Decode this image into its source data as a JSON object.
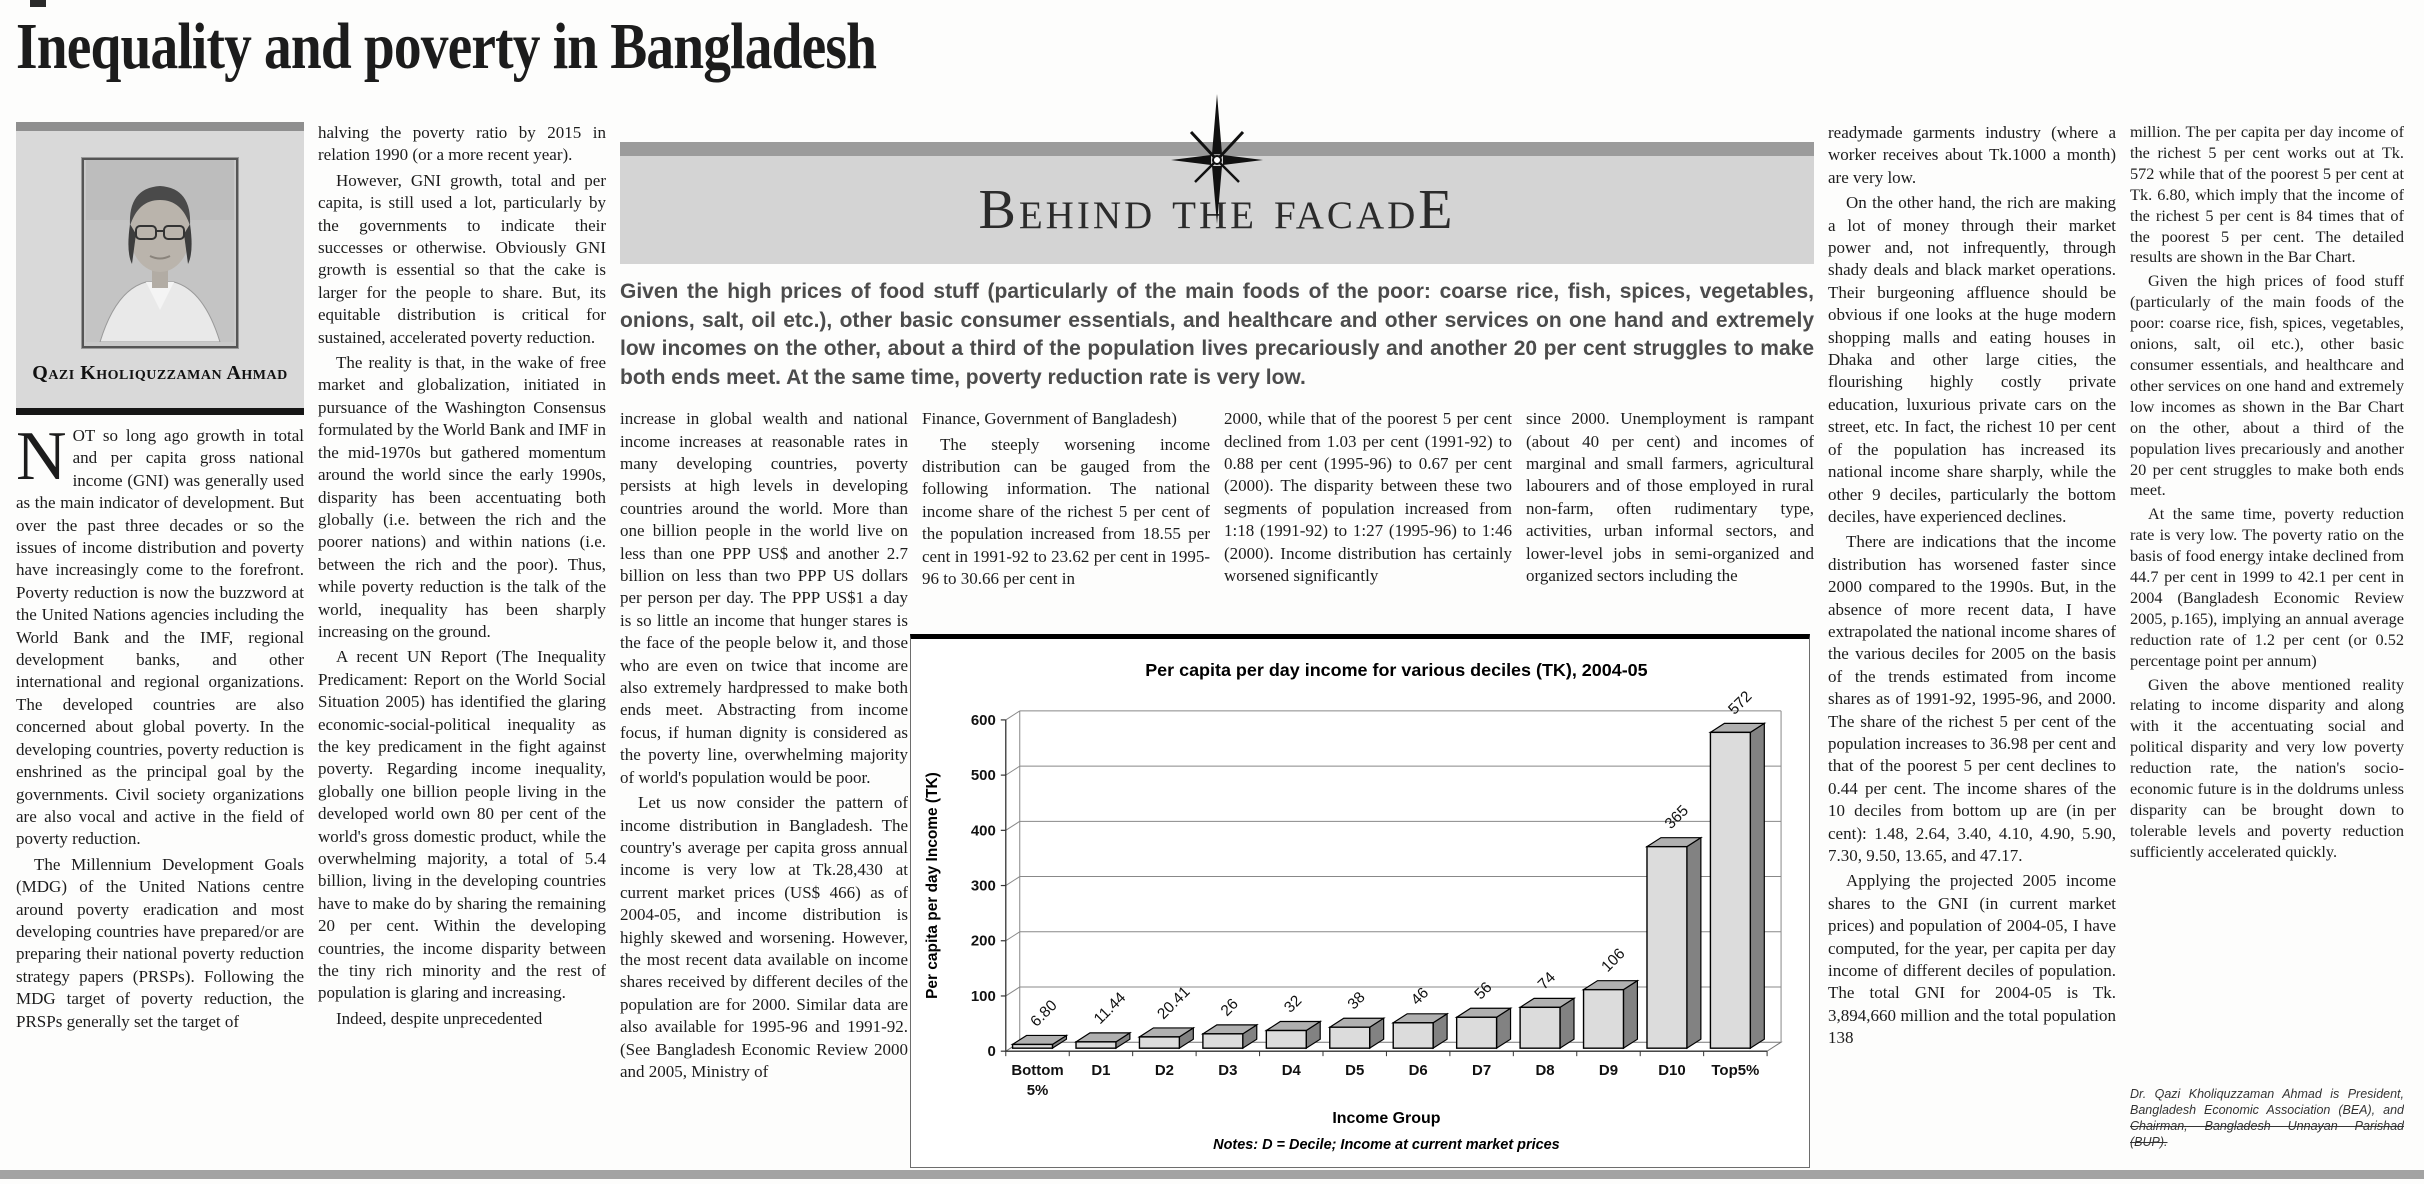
{
  "page": {
    "headline": "Inequality and poverty in Bangladesh"
  },
  "author": {
    "name": "Qazi Kholiquzzaman Ahmad",
    "portrait_icon": "portrait-photo"
  },
  "banner": {
    "icon": "starburst-icon",
    "title": "Behind the facadE",
    "intro": "Given the high prices of food stuff (particularly of the main foods of the poor: coarse rice, fish, spices, vegetables, onions, salt, oil etc.), other basic consumer essentials, and healthcare and other services on one hand and extremely low incomes on the other, about a third of the population lives precariously and another 20 per cent struggles to make both ends meet. At the same time, poverty reduction rate is very low."
  },
  "columns": {
    "col1": {
      "dropcap": "N",
      "paragraphs": [
        "OT so long ago growth in total and per capita gross national income (GNI) was generally used as the main indicator of development. But over the past three decades or so the issues of income distribution and poverty have increasingly come to the forefront. Poverty reduction is now the buzzword at the United Nations agencies including the World Bank and the IMF, regional development banks, and other international and regional organizations. The developed countries are also concerned about global poverty. In the developing countries, poverty reduction is enshrined as the principal goal by the governments. Civil society organizations are also vocal and active in the field of poverty reduction.",
        "The Millennium Development Goals (MDG) of the United Nations centre around poverty eradication and most developing countries have prepared/or are preparing their national poverty reduction strategy papers (PRSPs). Following the MDG target of poverty reduction, the PRSPs generally set the target of"
      ]
    },
    "col2": {
      "paragraphs": [
        "halving the poverty ratio by 2015 in relation 1990 (or a more recent year).",
        "However, GNI growth, total and per capita, is still used a lot, particularly by the governments to indicate their successes or otherwise. Obviously GNI growth is essential so that the cake is larger for the people to share. But, its equitable distribution is critical for sustained, accelerated poverty reduction.",
        "The reality is that, in the wake of free market and globalization, initiated in pursuance of the Washington Consensus formulated by the World Bank and IMF in the mid-1970s but gathered momentum around the world since the early 1990s, disparity has been accentuating both globally (i.e. between the rich and the poorer nations) and within nations (i.e. between the rich and the poor). Thus, while poverty reduction is the talk of the world, inequality has been sharply increasing on the ground.",
        "A recent UN Report (The Inequality Predicament: Report on the World Social Situation 2005) has identified the glaring economic-social-political inequality as the key predicament in the fight against poverty. Regarding income inequality, globally one billion people living in the developed world own 80 per cent of the world's gross domestic product, while the overwhelming majority, a total of 5.4 billion, living in the developing countries have to make do by sharing the remaining 20 per cent. Within the developing countries, the income disparity between the tiny rich minority and the rest of population is glaring and increasing.",
        "Indeed, despite unprecedented"
      ]
    },
    "col3": {
      "paragraphs": [
        "increase in global wealth and national income increases at reasonable rates in many developing countries, poverty persists at high levels in developing countries around the world.  More than one billion people in the world live on less than one PPP US$ and another 2.7 billion on less than two PPP US dollars per person per day. The PPP US$1 a day is so little an income that hunger stares is the face of the people below it, and those who are even on twice that income are also extremely hardpressed to make both ends meet. Abstracting from income focus, if human dignity is considered as the poverty line, overwhelming majority of world's population would be poor.",
        "Let us now consider the pattern of income distribution in Bangladesh. The country's average per capita gross annual income is very low at Tk.28,430 at current market prices (US$ 466) as of 2004-05, and income distribution is highly skewed and worsening. However, the most recent data available on income shares received by different deciles of the population are for 2000.  Similar data are also available for 1995-96 and 1991-92. (See Bangladesh Economic Review 2000 and 2005, Ministry of"
      ]
    },
    "col4": {
      "paragraphs": [
        "Finance, Government of Bangladesh)",
        "The steeply worsening income distribution can be gauged from the following information. The national income share of the richest 5 per cent of the population increased from 18.55 per cent in 1991-92 to 23.62 per cent in 1995-96 to 30.66 per cent in"
      ]
    },
    "col5": {
      "paragraphs": [
        "2000, while that of the poorest 5 per cent declined from 1.03 per cent (1991-92) to 0.88 per cent (1995-96) to 0.67 per cent (2000). The disparity between these two segments of population increased from 1:18 (1991-92) to 1:27 (1995-96) to 1:46 (2000). Income distribution has certainly worsened significantly"
      ]
    },
    "col6": {
      "paragraphs": [
        "since 2000. Unemployment is rampant (about 40 per cent) and incomes of marginal and small farmers, agricultural labourers and of those employed in rural non-farm, often rudimentary type, activities, urban informal sectors, and lower-level jobs in semi-organized and organized sectors including the"
      ]
    },
    "col7": {
      "paragraphs": [
        "readymade garments industry (where a worker receives about Tk.1000 a month) are very low.",
        "On the other hand, the rich are making a lot of money through their market power and, not infrequently, through shady deals and black market operations. Their burgeoning affluence should be obvious if one looks at the huge modern shopping malls and eating houses in Dhaka and other large cities, the flourishing highly costly private education, luxurious private cars on the street, etc.  In fact, the richest 10 per cent of the population has increased its national income share sharply, while the other 9 deciles, particularly the bottom deciles, have experienced declines.",
        "There are indications that the income distribution has worsened faster since 2000 compared to the 1990s.  But, in the absence of more recent data, I have extrapolated the national income shares of the various deciles for 2005 on the basis of the trends estimated from income shares as of 1991-92, 1995-96, and 2000. The share of the richest 5 per cent of the population increases to 36.98 per cent and that of the poorest 5 per cent declines to 0.44 per cent. The income shares of the 10 deciles from bottom up are (in per cent): 1.48, 2.64, 3.40, 4.10, 4.90, 5.90, 7.30, 9.50, 13.65, and 47.17.",
        "Applying the projected 2005 income shares to the GNI (in current market prices) and population of 2004-05, I have computed, for the year, per capita per day income of different deciles of population. The total GNI for 2004-05 is Tk. 3,894,660 million and the total population 138"
      ]
    },
    "col8": {
      "paragraphs": [
        "million.  The per capita per day income of the richest 5 per cent works out at Tk. 572 while that of the poorest 5 per cent at Tk. 6.80, which imply that the income of the richest 5 per cent is 84 times that of the poorest 5 per cent.  The detailed results are shown in the Bar Chart.",
        "Given the high prices of food stuff (particularly of the main foods of the poor: coarse rice, fish, spices, vegetables, onions, salt, oil etc.), other basic consumer essentials, and healthcare and other services on one hand and extremely low incomes as shown in the Bar Chart on the other, about a third of the population lives precariously and another 20 per cent struggles to make both ends meet.",
        "At the same time, poverty reduction rate is very low.  The poverty ratio on the basis of food energy intake declined from 44.7 per cent in 1999 to 42.1 per cent in 2004 (Bangladesh Economic Review 2005, p.165), implying an annual average reduction rate of 1.2 per cent (or 0.52 percentage point per annum)",
        "Given the above mentioned reality relating to income disparity and along with it the accentuating social and political disparity and very low poverty reduction rate, the nation's socio-economic future is in the doldrums unless disparity can be brought down to tolerable levels and poverty reduction sufficiently accelerated quickly."
      ]
    }
  },
  "footer": {
    "bio_line1": "Dr. Qazi Kholiquzzaman Ahmad is President, Bangladesh Economic Association (BEA), and",
    "bio_line2": "Chairman, Bangladesh Unnayan Parishad (BUP)."
  },
  "chart_data": {
    "type": "bar",
    "style": "3d-column",
    "title": "Per capita per day income for various deciles (TK), 2004-05",
    "categories": [
      "Bottom 5%",
      "D1",
      "D2",
      "D3",
      "D4",
      "D5",
      "D6",
      "D7",
      "D8",
      "D9",
      "D10",
      "Top5%"
    ],
    "values": [
      6.8,
      11.44,
      20.41,
      26,
      32,
      38,
      46,
      56,
      74,
      106,
      365,
      572
    ],
    "value_labels": [
      "6.80",
      "11.44",
      "20.41",
      "26",
      "32",
      "38",
      "46",
      "56",
      "74",
      "106",
      "365",
      "572"
    ],
    "xlabel": "Income Group",
    "ylabel": "Per capita per day Income (TK)",
    "notes": "Notes: D = Decile; Income at current market prices",
    "ylim": [
      0,
      600
    ],
    "yticks": [
      0,
      100,
      200,
      300,
      400,
      500,
      600
    ],
    "grid": true,
    "legend": "none",
    "colors": {
      "bar_front": "#dcdcdc",
      "bar_top": "#b0b0b0",
      "bar_side": "#828282",
      "background": "#ffffff"
    }
  }
}
